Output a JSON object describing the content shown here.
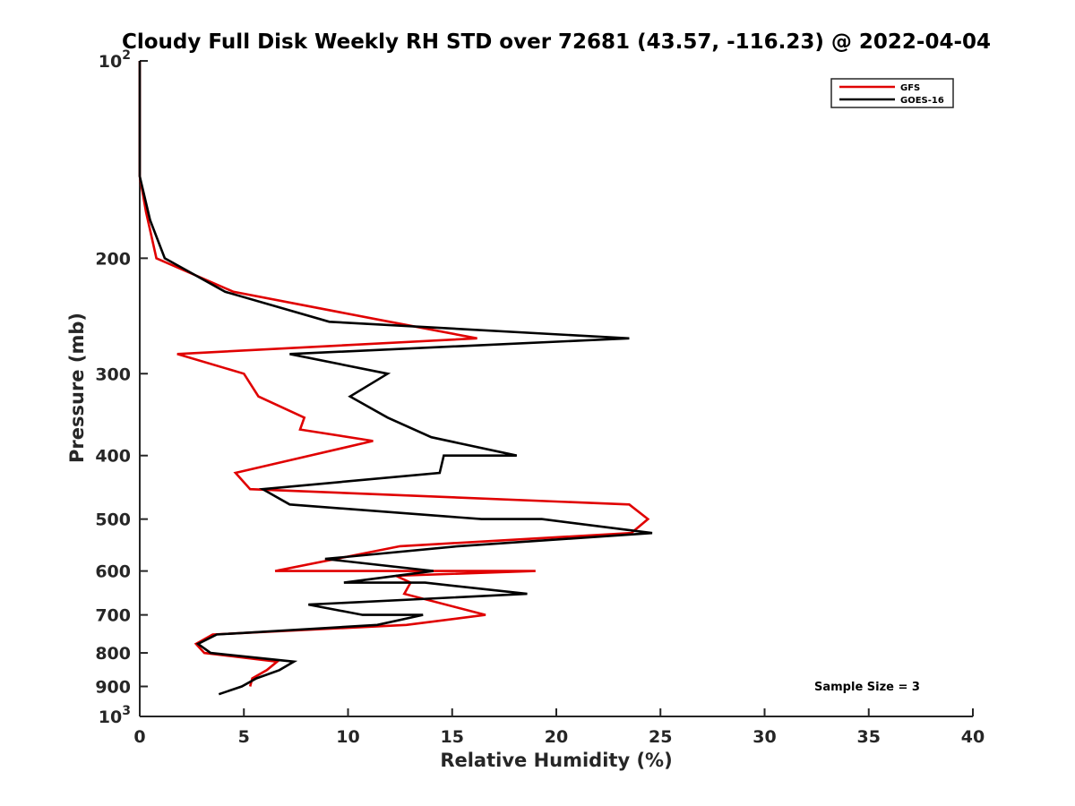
{
  "chart_data": {
    "type": "line",
    "title": "Cloudy Full Disk Weekly RH STD over 72681 (43.57, -116.23) @ 2022-04-04",
    "xlabel": "Relative Humidity (%)",
    "ylabel": "Pressure (mb)",
    "xlim": [
      0,
      40
    ],
    "ylim": [
      100,
      1000
    ],
    "y_scale": "log",
    "y_reversed": true,
    "xticks": [
      "0",
      "5",
      "10",
      "15",
      "20",
      "25",
      "30",
      "35",
      "40"
    ],
    "yticks": [
      {
        "value": 100,
        "base": "10",
        "exp": "2"
      },
      {
        "value": 200,
        "label": "200"
      },
      {
        "value": 300,
        "label": "300"
      },
      {
        "value": 400,
        "label": "400"
      },
      {
        "value": 500,
        "label": "500"
      },
      {
        "value": 600,
        "label": "600"
      },
      {
        "value": 700,
        "label": "700"
      },
      {
        "value": 800,
        "label": "800"
      },
      {
        "value": 900,
        "label": "900"
      },
      {
        "value": 1000,
        "base": "10",
        "exp": "3"
      }
    ],
    "legend_position": "top-right",
    "annotation": "Sample Size = 3",
    "series": [
      {
        "name": "GFS",
        "color": "#e00000",
        "points": [
          [
            0,
            100
          ],
          [
            0.0,
            125
          ],
          [
            0.0,
            150
          ],
          [
            0.3,
            170
          ],
          [
            0.8,
            200
          ],
          [
            4.5,
            225
          ],
          [
            12.0,
            250
          ],
          [
            16.2,
            265
          ],
          [
            1.8,
            280
          ],
          [
            5.0,
            300
          ],
          [
            5.7,
            325
          ],
          [
            7.9,
            350
          ],
          [
            7.7,
            365
          ],
          [
            11.2,
            380
          ],
          [
            4.6,
            425
          ],
          [
            5.3,
            450
          ],
          [
            23.5,
            475
          ],
          [
            24.4,
            500
          ],
          [
            23.6,
            525
          ],
          [
            12.5,
            550
          ],
          [
            6.5,
            600
          ],
          [
            19.0,
            600
          ],
          [
            12.3,
            610
          ],
          [
            13.0,
            625
          ],
          [
            12.7,
            650
          ],
          [
            16.6,
            700
          ],
          [
            12.8,
            725
          ],
          [
            3.5,
            750
          ],
          [
            2.7,
            775
          ],
          [
            3.1,
            800
          ],
          [
            6.6,
            825
          ],
          [
            6.1,
            850
          ],
          [
            5.4,
            875
          ],
          [
            5.3,
            900
          ]
        ]
      },
      {
        "name": "GOES-16",
        "color": "#000000",
        "points": [
          [
            0,
            100
          ],
          [
            0.0,
            125
          ],
          [
            0.0,
            150
          ],
          [
            0.5,
            175
          ],
          [
            1.2,
            200
          ],
          [
            4.1,
            225
          ],
          [
            9.1,
            250
          ],
          [
            23.5,
            265
          ],
          [
            7.2,
            280
          ],
          [
            11.9,
            300
          ],
          [
            10.1,
            325
          ],
          [
            11.9,
            350
          ],
          [
            14.0,
            375
          ],
          [
            18.1,
            400
          ],
          [
            14.6,
            400
          ],
          [
            14.4,
            425
          ],
          [
            5.9,
            450
          ],
          [
            7.2,
            475
          ],
          [
            16.4,
            500
          ],
          [
            19.3,
            500
          ],
          [
            24.6,
            525
          ],
          [
            15.3,
            550
          ],
          [
            8.9,
            575
          ],
          [
            14.1,
            600
          ],
          [
            9.8,
            625
          ],
          [
            13.7,
            625
          ],
          [
            18.6,
            650
          ],
          [
            8.1,
            675
          ],
          [
            10.7,
            700
          ],
          [
            13.6,
            700
          ],
          [
            11.4,
            725
          ],
          [
            3.7,
            750
          ],
          [
            2.8,
            775
          ],
          [
            3.4,
            800
          ],
          [
            7.4,
            825
          ],
          [
            6.7,
            850
          ],
          [
            5.6,
            875
          ],
          [
            4.9,
            900
          ],
          [
            3.8,
            925
          ]
        ]
      }
    ]
  }
}
